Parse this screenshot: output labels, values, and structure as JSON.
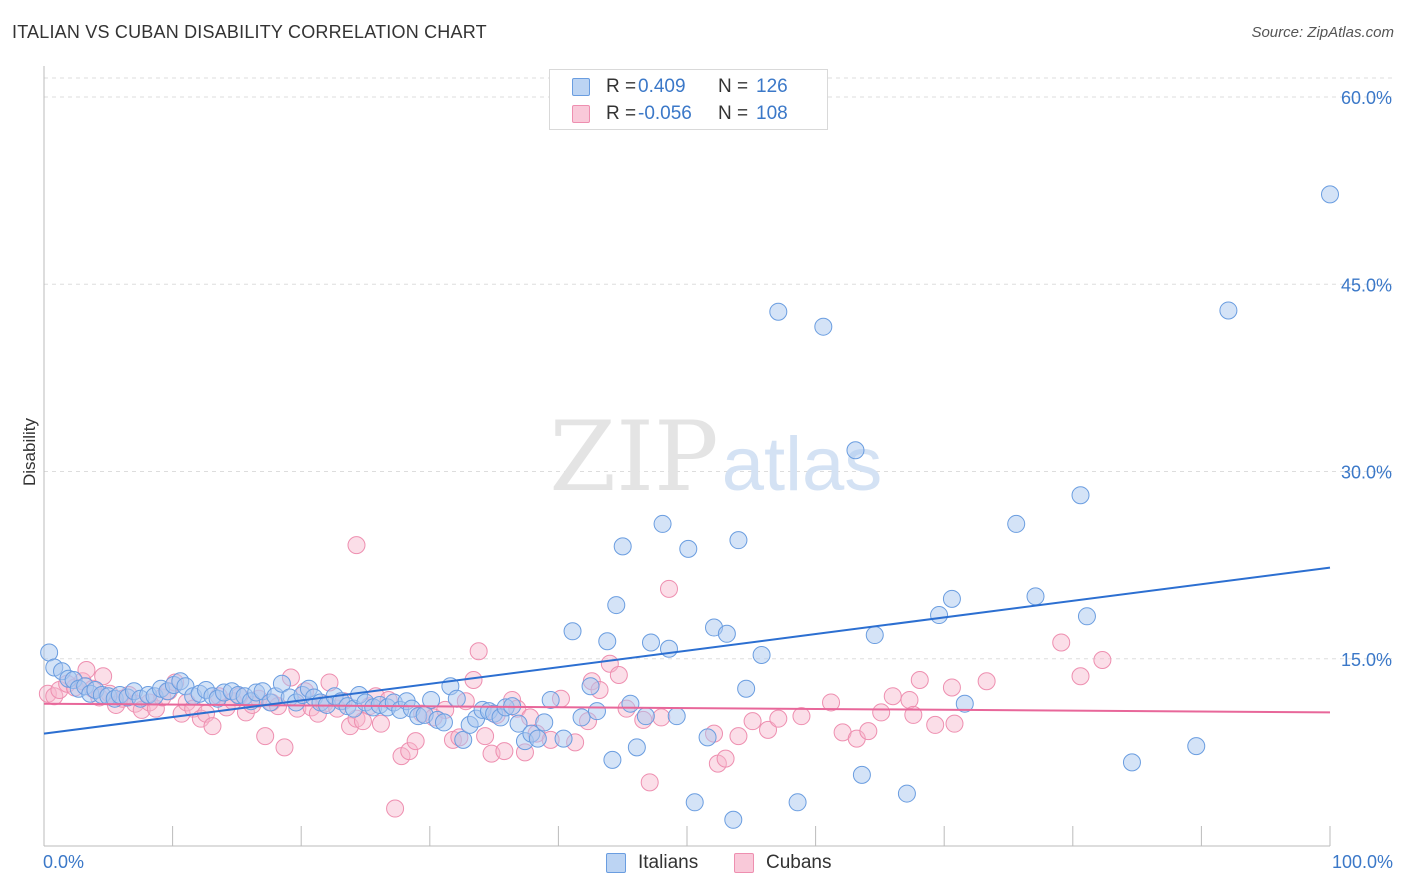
{
  "title": "ITALIAN VS CUBAN DISABILITY CORRELATION CHART",
  "source": "Source: ZipAtlas.com",
  "watermark": {
    "zip": "ZIP",
    "atlas": "atlas"
  },
  "legend": {
    "rows": [
      {
        "r_label": "R =",
        "r_value": "0.409",
        "n_label": "N =",
        "n_value": "126"
      },
      {
        "r_label": "R =",
        "r_value": "-0.056",
        "n_label": "N =",
        "n_value": "108"
      }
    ]
  },
  "bottom_legend": {
    "italians": "Italians",
    "cubans": "Cubans"
  },
  "colors": {
    "italians_fill": "#a9c8f0",
    "italians_stroke": "#6a9de0",
    "italians_line": "#2c6fd1",
    "cubans_fill": "#f6b6cb",
    "cubans_stroke": "#ee8fb0",
    "cubans_line": "#e8679a",
    "tick_text": "#3b78c8",
    "grid": "#dddddd"
  },
  "chart_data": {
    "type": "scatter",
    "title": "ITALIAN VS CUBAN DISABILITY CORRELATION CHART",
    "xlabel": "",
    "ylabel": "Disability",
    "xlim": [
      0,
      100
    ],
    "ylim": [
      0,
      62
    ],
    "x_tick_labels": [
      "0.0%",
      "100.0%"
    ],
    "y_ticks": [
      15,
      30,
      45,
      60
    ],
    "y_tick_labels": [
      "15.0%",
      "30.0%",
      "45.0%",
      "60.0%"
    ],
    "grid": "horizontal dashed",
    "legend_position": "top-center",
    "series": [
      {
        "name": "Italians",
        "r": 0.409,
        "n": 126,
        "trend": [
          [
            0,
            9.0
          ],
          [
            100,
            22.3
          ]
        ],
        "points": [
          [
            0.4,
            15.5
          ],
          [
            0.8,
            14.3
          ],
          [
            1.4,
            14.0
          ],
          [
            1.9,
            13.4
          ],
          [
            2.3,
            13.3
          ],
          [
            2.7,
            12.6
          ],
          [
            3.2,
            12.8
          ],
          [
            3.6,
            12.2
          ],
          [
            4.0,
            12.5
          ],
          [
            4.5,
            12.1
          ],
          [
            5.0,
            12.0
          ],
          [
            5.5,
            11.8
          ],
          [
            5.9,
            12.1
          ],
          [
            6.5,
            11.9
          ],
          [
            7.0,
            12.4
          ],
          [
            7.5,
            11.8
          ],
          [
            8.1,
            12.1
          ],
          [
            8.6,
            12.0
          ],
          [
            9.1,
            12.6
          ],
          [
            9.6,
            12.4
          ],
          [
            10.1,
            12.9
          ],
          [
            10.6,
            13.2
          ],
          [
            11.0,
            12.8
          ],
          [
            11.6,
            12.0
          ],
          [
            12.1,
            12.2
          ],
          [
            12.6,
            12.5
          ],
          [
            13.1,
            12.0
          ],
          [
            13.5,
            11.8
          ],
          [
            14.0,
            12.3
          ],
          [
            14.6,
            12.4
          ],
          [
            15.1,
            12.1
          ],
          [
            15.6,
            12.0
          ],
          [
            16.1,
            11.6
          ],
          [
            16.5,
            12.3
          ],
          [
            17.0,
            12.4
          ],
          [
            17.6,
            11.5
          ],
          [
            18.0,
            12.0
          ],
          [
            18.5,
            13.0
          ],
          [
            19.1,
            11.9
          ],
          [
            19.6,
            11.5
          ],
          [
            20.1,
            12.1
          ],
          [
            20.6,
            12.6
          ],
          [
            21.0,
            11.9
          ],
          [
            21.5,
            11.5
          ],
          [
            22.0,
            11.3
          ],
          [
            22.6,
            12.0
          ],
          [
            23.1,
            11.6
          ],
          [
            23.6,
            11.2
          ],
          [
            24.1,
            11.0
          ],
          [
            24.5,
            12.1
          ],
          [
            25.0,
            11.5
          ],
          [
            25.6,
            11.1
          ],
          [
            26.1,
            11.3
          ],
          [
            26.7,
            11.1
          ],
          [
            27.2,
            11.5
          ],
          [
            27.7,
            10.9
          ],
          [
            28.2,
            11.6
          ],
          [
            28.6,
            11.0
          ],
          [
            29.1,
            10.4
          ],
          [
            29.6,
            10.5
          ],
          [
            30.1,
            11.7
          ],
          [
            30.6,
            10.1
          ],
          [
            31.1,
            9.9
          ],
          [
            31.6,
            12.8
          ],
          [
            32.1,
            11.8
          ],
          [
            32.6,
            8.5
          ],
          [
            33.1,
            9.7
          ],
          [
            33.6,
            10.2
          ],
          [
            34.1,
            10.9
          ],
          [
            34.6,
            10.8
          ],
          [
            35.0,
            10.6
          ],
          [
            35.5,
            10.3
          ],
          [
            35.9,
            11.1
          ],
          [
            36.4,
            11.2
          ],
          [
            36.9,
            9.8
          ],
          [
            37.4,
            8.4
          ],
          [
            37.9,
            9.0
          ],
          [
            38.4,
            8.6
          ],
          [
            38.9,
            9.9
          ],
          [
            39.4,
            11.7
          ],
          [
            40.4,
            8.6
          ],
          [
            41.1,
            17.2
          ],
          [
            41.8,
            10.3
          ],
          [
            42.5,
            12.8
          ],
          [
            43.0,
            10.8
          ],
          [
            43.8,
            16.4
          ],
          [
            44.2,
            6.9
          ],
          [
            44.5,
            19.3
          ],
          [
            45.0,
            24.0
          ],
          [
            45.6,
            11.4
          ],
          [
            46.1,
            7.9
          ],
          [
            46.8,
            10.4
          ],
          [
            47.2,
            16.3
          ],
          [
            48.1,
            25.8
          ],
          [
            48.6,
            15.8
          ],
          [
            49.2,
            10.4
          ],
          [
            50.1,
            23.8
          ],
          [
            50.6,
            3.5
          ],
          [
            51.6,
            8.7
          ],
          [
            52.1,
            17.5
          ],
          [
            53.1,
            17.0
          ],
          [
            53.6,
            2.1
          ],
          [
            54.0,
            24.5
          ],
          [
            54.6,
            12.6
          ],
          [
            55.8,
            15.3
          ],
          [
            57.1,
            42.8
          ],
          [
            58.6,
            3.5
          ],
          [
            60.6,
            41.6
          ],
          [
            63.1,
            31.7
          ],
          [
            63.6,
            5.7
          ],
          [
            64.6,
            16.9
          ],
          [
            67.1,
            4.2
          ],
          [
            69.6,
            18.5
          ],
          [
            70.6,
            19.8
          ],
          [
            71.6,
            11.4
          ],
          [
            75.6,
            25.8
          ],
          [
            77.1,
            20.0
          ],
          [
            80.6,
            28.1
          ],
          [
            81.1,
            18.4
          ],
          [
            84.6,
            6.7
          ],
          [
            89.6,
            8.0
          ],
          [
            92.1,
            42.9
          ],
          [
            100.0,
            52.2
          ]
        ]
      },
      {
        "name": "Cubans",
        "r": -0.056,
        "n": 108,
        "trend": [
          [
            0,
            11.4
          ],
          [
            100,
            10.7
          ]
        ],
        "points": [
          [
            0.3,
            12.2
          ],
          [
            0.8,
            12.0
          ],
          [
            1.2,
            12.5
          ],
          [
            1.8,
            13.0
          ],
          [
            2.4,
            12.7
          ],
          [
            3.0,
            13.2
          ],
          [
            3.3,
            14.1
          ],
          [
            3.8,
            12.6
          ],
          [
            4.3,
            11.9
          ],
          [
            4.6,
            13.6
          ],
          [
            5.1,
            12.2
          ],
          [
            5.6,
            11.3
          ],
          [
            6.1,
            11.8
          ],
          [
            6.6,
            12.1
          ],
          [
            7.1,
            11.4
          ],
          [
            7.6,
            10.9
          ],
          [
            8.2,
            11.5
          ],
          [
            8.7,
            11.0
          ],
          [
            9.2,
            11.9
          ],
          [
            9.7,
            12.4
          ],
          [
            10.2,
            13.1
          ],
          [
            10.7,
            10.6
          ],
          [
            11.1,
            11.5
          ],
          [
            11.6,
            11.0
          ],
          [
            12.2,
            10.2
          ],
          [
            12.6,
            10.6
          ],
          [
            13.1,
            9.6
          ],
          [
            13.6,
            12.0
          ],
          [
            14.2,
            11.1
          ],
          [
            14.7,
            11.6
          ],
          [
            15.2,
            12.0
          ],
          [
            15.7,
            10.7
          ],
          [
            16.2,
            11.3
          ],
          [
            16.7,
            11.8
          ],
          [
            17.2,
            8.8
          ],
          [
            17.7,
            11.5
          ],
          [
            18.2,
            11.2
          ],
          [
            18.7,
            7.9
          ],
          [
            19.2,
            13.5
          ],
          [
            19.7,
            11.0
          ],
          [
            20.3,
            12.4
          ],
          [
            20.8,
            11.1
          ],
          [
            21.3,
            10.6
          ],
          [
            21.8,
            11.4
          ],
          [
            22.2,
            13.1
          ],
          [
            22.8,
            11.0
          ],
          [
            23.3,
            11.6
          ],
          [
            23.8,
            9.6
          ],
          [
            24.3,
            10.2
          ],
          [
            24.8,
            10.0
          ],
          [
            25.3,
            11.2
          ],
          [
            25.8,
            12.0
          ],
          [
            26.2,
            9.8
          ],
          [
            26.8,
            11.7
          ],
          [
            27.3,
            3.0
          ],
          [
            27.8,
            7.2
          ],
          [
            28.4,
            7.6
          ],
          [
            28.9,
            8.4
          ],
          [
            29.4,
            10.6
          ],
          [
            30.3,
            10.3
          ],
          [
            31.2,
            10.9
          ],
          [
            31.8,
            8.5
          ],
          [
            32.3,
            8.7
          ],
          [
            32.8,
            11.6
          ],
          [
            33.4,
            13.3
          ],
          [
            33.8,
            15.6
          ],
          [
            34.3,
            8.8
          ],
          [
            34.8,
            7.4
          ],
          [
            35.2,
            10.5
          ],
          [
            35.8,
            7.6
          ],
          [
            36.4,
            11.7
          ],
          [
            36.8,
            11.0
          ],
          [
            37.4,
            7.5
          ],
          [
            37.8,
            10.3
          ],
          [
            38.3,
            9.0
          ],
          [
            39.4,
            8.5
          ],
          [
            40.2,
            11.8
          ],
          [
            41.3,
            8.3
          ],
          [
            42.3,
            10.0
          ],
          [
            42.6,
            13.2
          ],
          [
            43.2,
            12.5
          ],
          [
            44.0,
            14.6
          ],
          [
            44.7,
            13.7
          ],
          [
            45.3,
            11.0
          ],
          [
            46.6,
            10.1
          ],
          [
            47.1,
            5.1
          ],
          [
            48.0,
            10.3
          ],
          [
            48.6,
            20.6
          ],
          [
            52.1,
            9.0
          ],
          [
            52.4,
            6.6
          ],
          [
            53.0,
            7.0
          ],
          [
            54.0,
            8.8
          ],
          [
            55.1,
            10.0
          ],
          [
            56.3,
            9.3
          ],
          [
            57.1,
            10.2
          ],
          [
            58.9,
            10.4
          ],
          [
            61.2,
            11.5
          ],
          [
            62.1,
            9.1
          ],
          [
            63.2,
            8.6
          ],
          [
            64.1,
            9.2
          ],
          [
            65.1,
            10.7
          ],
          [
            66.0,
            12.0
          ],
          [
            67.3,
            11.7
          ],
          [
            67.6,
            10.5
          ],
          [
            68.1,
            13.3
          ],
          [
            69.3,
            9.7
          ],
          [
            70.6,
            12.7
          ],
          [
            70.8,
            9.8
          ],
          [
            73.3,
            13.2
          ],
          [
            79.1,
            16.3
          ],
          [
            80.6,
            13.6
          ],
          [
            82.3,
            14.9
          ],
          [
            24.3,
            24.1
          ]
        ]
      }
    ]
  }
}
